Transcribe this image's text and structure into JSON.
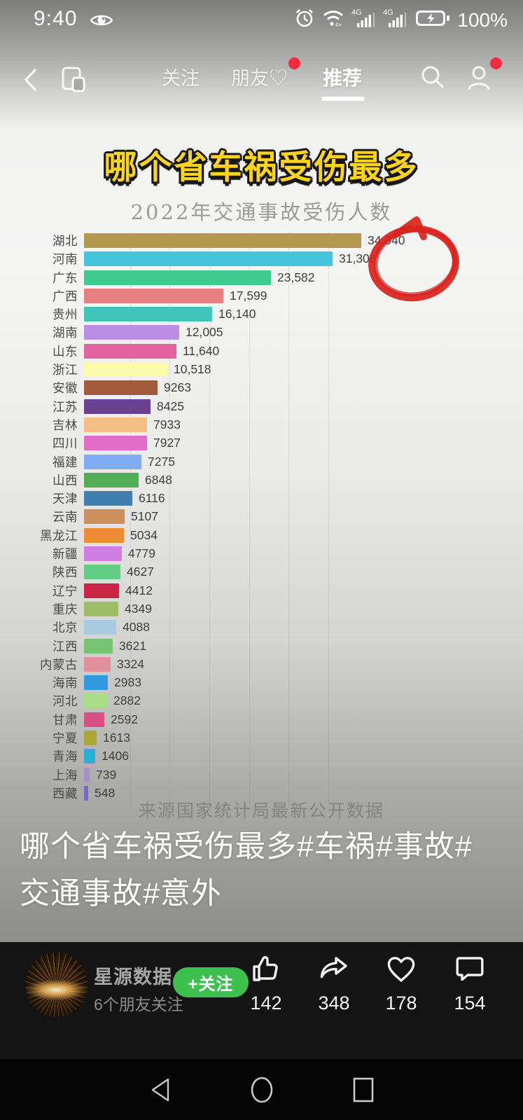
{
  "status_bar": {
    "time": "9:40",
    "battery_pct": "100%"
  },
  "header": {
    "tabs": [
      {
        "label": "关注",
        "active": false
      },
      {
        "label": "朋友♡",
        "active": false,
        "badge": true
      },
      {
        "label": "推荐",
        "active": true
      }
    ]
  },
  "video": {
    "headline": "哪个省车祸受伤最多",
    "source_note": "来源国家统计局最新公开数据",
    "caption": "哪个省车祸受伤最多#车祸#事故#交通事故#意外"
  },
  "chart_data": {
    "type": "bar",
    "orientation": "horizontal",
    "title": "2022年交通事故受伤人数",
    "categories": [
      "湖北",
      "河南",
      "广东",
      "广西",
      "贵州",
      "湖南",
      "山东",
      "浙江",
      "安徽",
      "江苏",
      "吉林",
      "四川",
      "福建",
      "山西",
      "天津",
      "云南",
      "黑龙江",
      "新疆",
      "陕西",
      "辽宁",
      "重庆",
      "北京",
      "江西",
      "内蒙古",
      "海南",
      "河北",
      "甘肃",
      "宁夏",
      "青海",
      "上海",
      "西藏"
    ],
    "values": [
      34940,
      31306,
      23582,
      17599,
      16140,
      12005,
      11640,
      10518,
      9263,
      8425,
      7933,
      7927,
      7275,
      6848,
      6116,
      5107,
      5034,
      4779,
      4627,
      4412,
      4349,
      4088,
      3621,
      3324,
      2983,
      2882,
      2592,
      1613,
      1406,
      739,
      548
    ],
    "value_labels": [
      "34,940",
      "31,306",
      "23,582",
      "17,599",
      "16,140",
      "12,005",
      "11,640",
      "10,518",
      "9263",
      "8425",
      "7933",
      "7927",
      "7275",
      "6848",
      "6116",
      "5107",
      "5034",
      "4779",
      "4627",
      "4412",
      "4349",
      "4088",
      "3621",
      "3324",
      "2983",
      "2882",
      "2592",
      "1613",
      "1406",
      "739",
      "548"
    ],
    "bar_colors": [
      "#b3984d",
      "#45c5db",
      "#40ca90",
      "#e68082",
      "#41c5ba",
      "#b98ee3",
      "#e2639d",
      "#fafaa8",
      "#a45b3b",
      "#6a4191",
      "#f4be86",
      "#e16dc9",
      "#81abf3",
      "#52ae53",
      "#3f80b1",
      "#cc8f5a",
      "#ef8b35",
      "#cf7fe2",
      "#63cd85",
      "#cc2444",
      "#a0bd68",
      "#a9cbe0",
      "#77c476",
      "#e0919b",
      "#3399dd",
      "#aadd88",
      "#d94f86",
      "#a8a833",
      "#27b2d5",
      "#a98fc5",
      "#7766cc"
    ],
    "xlim": [
      0,
      35000
    ],
    "gridline_interval": 5000,
    "annotation": {
      "type": "hand-drawn-circle",
      "target": "河南 31,306",
      "color": "#d8231d"
    }
  },
  "footer": {
    "username": "星源数据",
    "follow_info": "6个朋友关注",
    "follow_button": "+关注",
    "follow_button_color": "#3ec04e",
    "actions": [
      {
        "name": "like",
        "count": "142"
      },
      {
        "name": "share",
        "count": "348"
      },
      {
        "name": "favorite",
        "count": "178"
      },
      {
        "name": "comment",
        "count": "154"
      }
    ]
  },
  "android_nav": {
    "back": "back",
    "home": "home",
    "recents": "recents"
  }
}
